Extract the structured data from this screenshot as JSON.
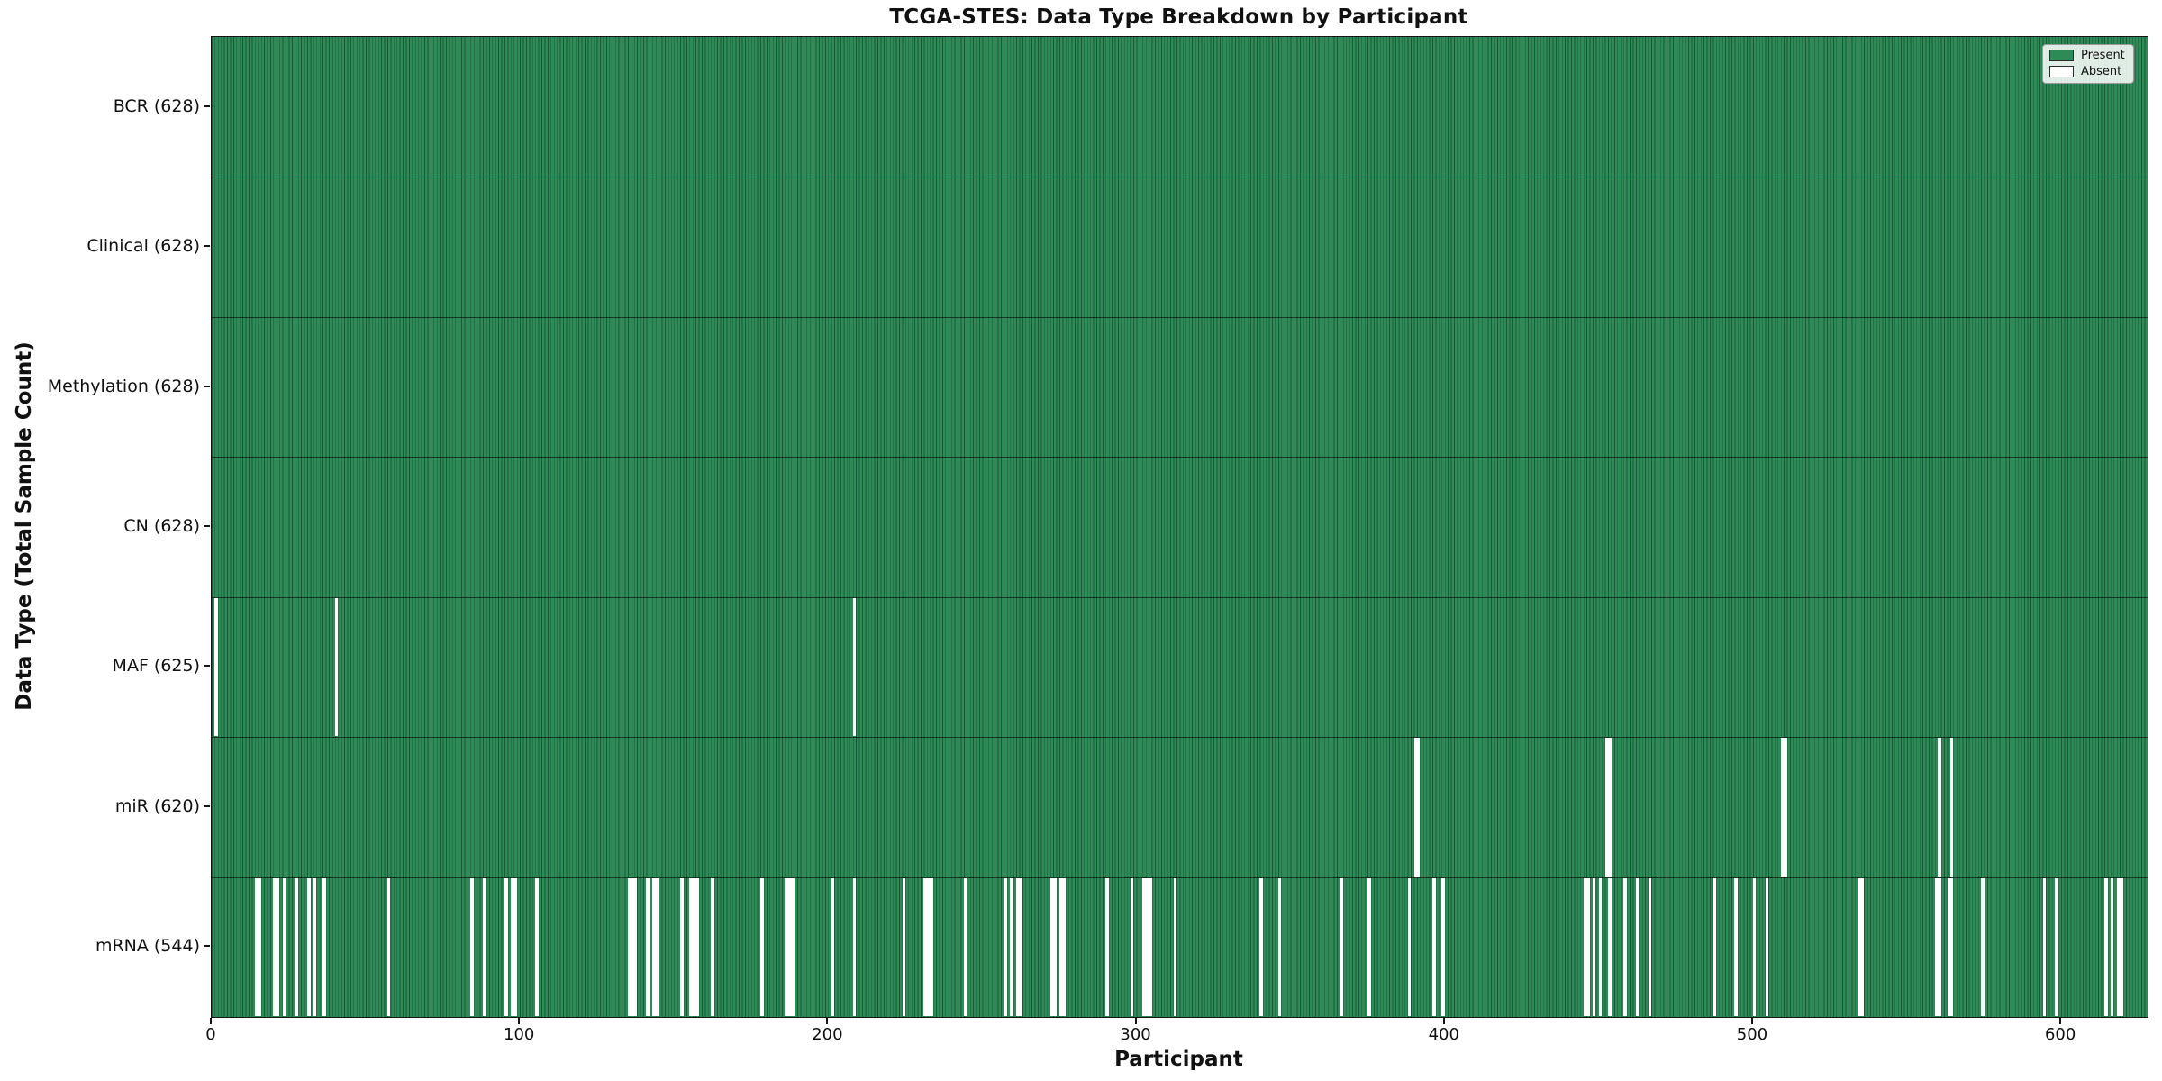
{
  "chart_data": {
    "type": "heatmap",
    "title": "TCGA-STES: Data Type Breakdown by Participant",
    "xlabel": "Participant",
    "ylabel": "Data Type (Total Sample Count)",
    "x_ticks": [
      0,
      100,
      200,
      300,
      400,
      500,
      600
    ],
    "x_range": [
      0,
      628
    ],
    "n_participants": 628,
    "grid": false,
    "legend_position": "upper right",
    "legend": [
      {
        "label": "Present",
        "color": "#2e8b57"
      },
      {
        "label": "Absent",
        "color": "#ffffff"
      }
    ],
    "colors": {
      "present": "#2e8b57",
      "absent": "#ffffff",
      "bar_edge": "#0c3520",
      "background": "#ffffff",
      "text": "#111111"
    },
    "rows": [
      {
        "name": "BCR",
        "label": "BCR (628)",
        "count": 628,
        "absent": []
      },
      {
        "name": "Clinical",
        "label": "Clinical (628)",
        "count": 628,
        "absent": []
      },
      {
        "name": "Methylation",
        "label": "Methylation (628)",
        "count": 628,
        "absent": []
      },
      {
        "name": "CN",
        "label": "CN (628)",
        "count": 628,
        "absent": []
      },
      {
        "name": "MAF",
        "label": "MAF (625)",
        "count": 625,
        "absent": [
          1,
          40,
          208
        ]
      },
      {
        "name": "miR",
        "label": "miR (620)",
        "count": 620,
        "absent": [
          390,
          391,
          452,
          453,
          509,
          510,
          560,
          564
        ]
      },
      {
        "name": "mRNA",
        "label": "mRNA (544)",
        "count": 544,
        "absent": [
          14,
          15,
          20,
          21,
          23,
          27,
          31,
          33,
          36,
          57,
          84,
          88,
          95,
          97,
          98,
          105,
          135,
          136,
          137,
          141,
          143,
          144,
          152,
          155,
          156,
          157,
          162,
          178,
          186,
          187,
          188,
          201,
          208,
          224,
          231,
          232,
          233,
          244,
          257,
          259,
          261,
          262,
          272,
          273,
          275,
          276,
          290,
          298,
          302,
          303,
          304,
          312,
          340,
          346,
          366,
          375,
          388,
          396,
          399,
          445,
          446,
          448,
          450,
          453,
          458,
          462,
          466,
          487,
          494,
          500,
          504,
          534,
          535,
          559,
          560,
          563,
          564,
          574,
          594,
          598,
          614,
          616,
          618,
          619
        ]
      }
    ]
  }
}
